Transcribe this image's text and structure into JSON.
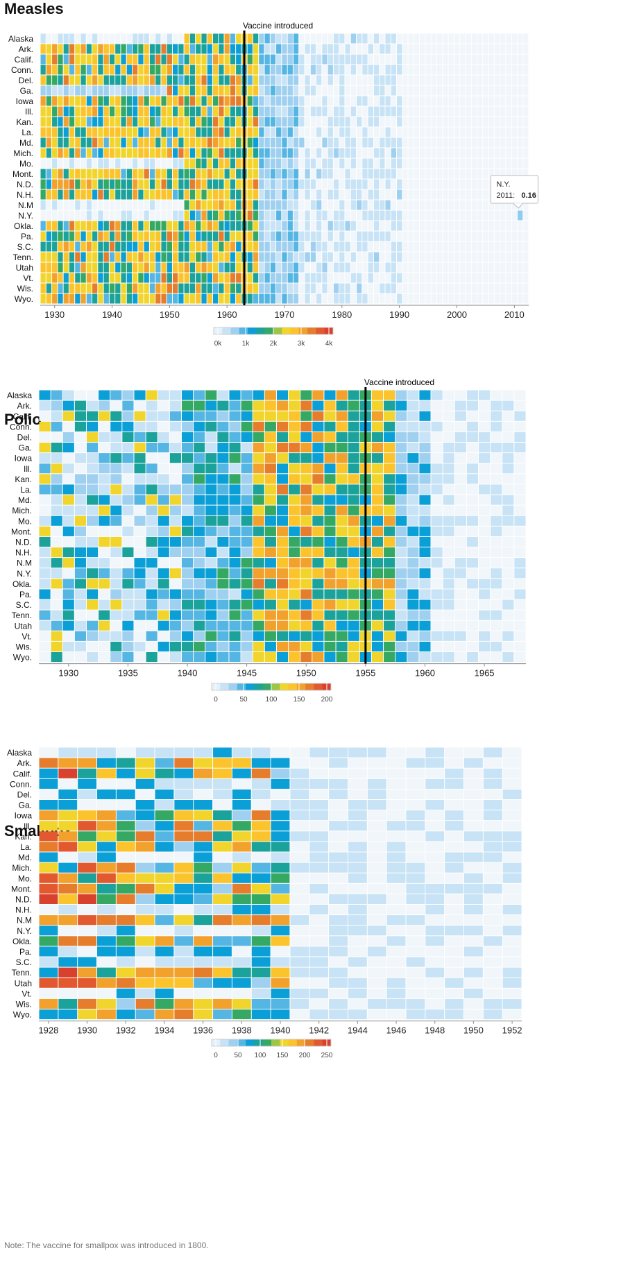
{
  "page": {
    "note": "Note: The vaccine for smallpox was introduced in 1800."
  },
  "palette": [
    "#e4f1fa",
    "#c7e3f5",
    "#9fd0ef",
    "#55b6e3",
    "#0a9fd6",
    "#1ba39b",
    "#35a963",
    "#9fc546",
    "#f2d52c",
    "#fbc32c",
    "#f2a22c",
    "#e57d2d",
    "#e3592f",
    "#d9412f"
  ],
  "chart_data": [
    {
      "id": "measles",
      "type": "heatmap",
      "title": "Measles",
      "annotation": "Vaccine introduced",
      "vaccine_year": 1963,
      "x_range": [
        1928,
        2012
      ],
      "x_ticks": [
        1930,
        1940,
        1950,
        1960,
        1970,
        1980,
        1990,
        2000,
        2010
      ],
      "rows": [
        "Alaska",
        "Ark.",
        "Calif.",
        "Conn.",
        "Del.",
        "Ga.",
        "Iowa",
        "Ill.",
        "Kan.",
        "La.",
        "Md.",
        "Mich.",
        "Mo.",
        "Mont.",
        "N.D.",
        "N.H.",
        "N.M",
        "N.Y.",
        "Okla.",
        "Pa.",
        "S.C.",
        "Tenn.",
        "Utah",
        "Vt.",
        "Wis.",
        "Wyo."
      ],
      "legend_ticks": [
        "0k",
        "1k",
        "2k",
        "3k",
        "4k"
      ],
      "legend_max": 4000,
      "tooltip": {
        "state": "N.Y.",
        "year_label": "2011:",
        "value": "0.16"
      }
    },
    {
      "id": "polio",
      "type": "heatmap",
      "title": "Polio",
      "annotation": "Vaccine introduced",
      "vaccine_year": 1955,
      "x_range": [
        1928,
        1968
      ],
      "x_ticks": [
        1930,
        1935,
        1940,
        1945,
        1950,
        1955,
        1960,
        1965
      ],
      "rows": [
        "Alaska",
        "Ark.",
        "Calif.",
        "Conn.",
        "Del.",
        "Ga.",
        "Iowa",
        "Ill.",
        "Kan.",
        "La.",
        "Md.",
        "Mich.",
        "Mo.",
        "Mont.",
        "N.D.",
        "N.H.",
        "N.M",
        "N.Y.",
        "Okla.",
        "Pa.",
        "S.C.",
        "Tenn.",
        "Utah",
        "Vt.",
        "Wis.",
        "Wyo."
      ],
      "legend_ticks": [
        "0",
        "50",
        "100",
        "150",
        "200"
      ],
      "legend_max": 200
    },
    {
      "id": "smallpox",
      "type": "heatmap",
      "title": "Smallpox",
      "x_range": [
        1928,
        1952
      ],
      "x_ticks": [
        1928,
        1930,
        1932,
        1934,
        1936,
        1938,
        1940,
        1942,
        1944,
        1946,
        1948,
        1950,
        1952
      ],
      "rows": [
        "Alaska",
        "Ark.",
        "Calif.",
        "Conn.",
        "Del.",
        "Ga.",
        "Iowa",
        "Ill.",
        "Kan.",
        "La.",
        "Md.",
        "Mich.",
        "Mo.",
        "Mont.",
        "N.D.",
        "N.H.",
        "N.M",
        "N.Y.",
        "Okla.",
        "Pa.",
        "S.C.",
        "Tenn.",
        "Utah",
        "Vt.",
        "Wis.",
        "Wyo."
      ],
      "legend_ticks": [
        "0",
        "50",
        "100",
        "150",
        "200",
        "250"
      ],
      "legend_max": 250
    }
  ]
}
